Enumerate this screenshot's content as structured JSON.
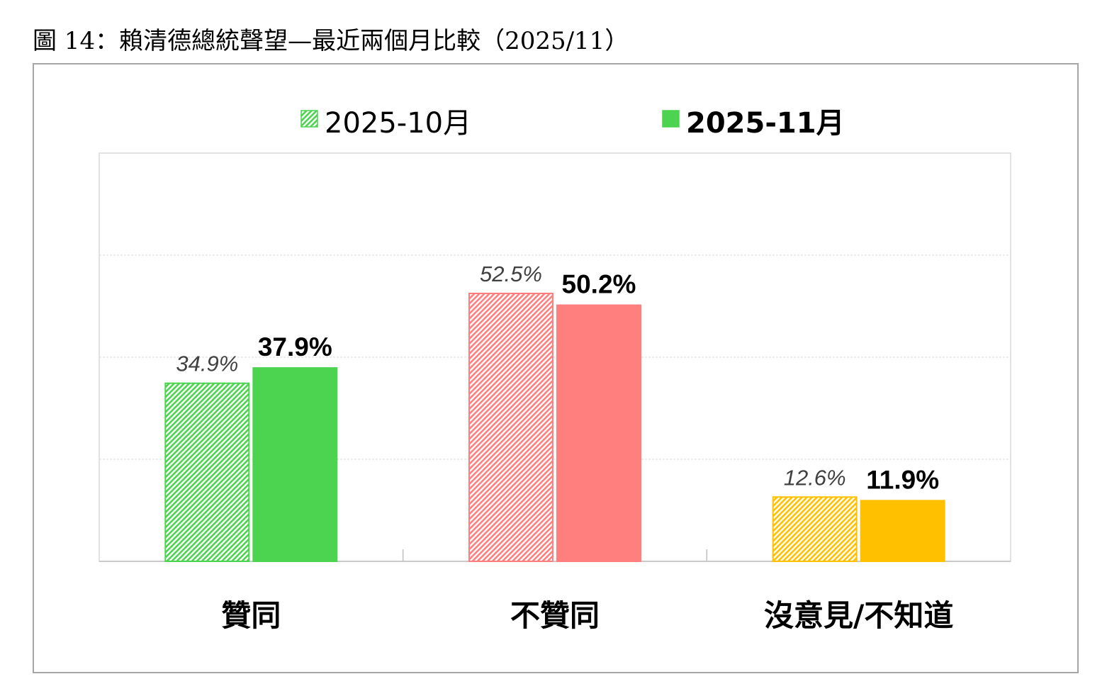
{
  "figure_title": "圖 14：賴清德總統聲望—最近兩個月比較（2025/11）",
  "chart_data": {
    "type": "bar",
    "title": "",
    "xlabel": "",
    "ylabel": "",
    "ylim": [
      0,
      80
    ],
    "grid": true,
    "legend_placement": "top-center",
    "categories": [
      "贊同",
      "不贊同",
      "沒意見/不知道"
    ],
    "category_colors": [
      "#4cd34f",
      "#ff7f7f",
      "#ffc000"
    ],
    "series": [
      {
        "name": "2025-10月",
        "style": "hatched",
        "values": [
          34.9,
          52.5,
          12.6
        ],
        "labels": [
          "34.9%",
          "52.5%",
          "12.6%"
        ]
      },
      {
        "name": "2025-11月",
        "style": "solid",
        "values": [
          37.9,
          50.2,
          11.9
        ],
        "labels": [
          "37.9%",
          "50.2%",
          "11.9%"
        ]
      }
    ]
  }
}
